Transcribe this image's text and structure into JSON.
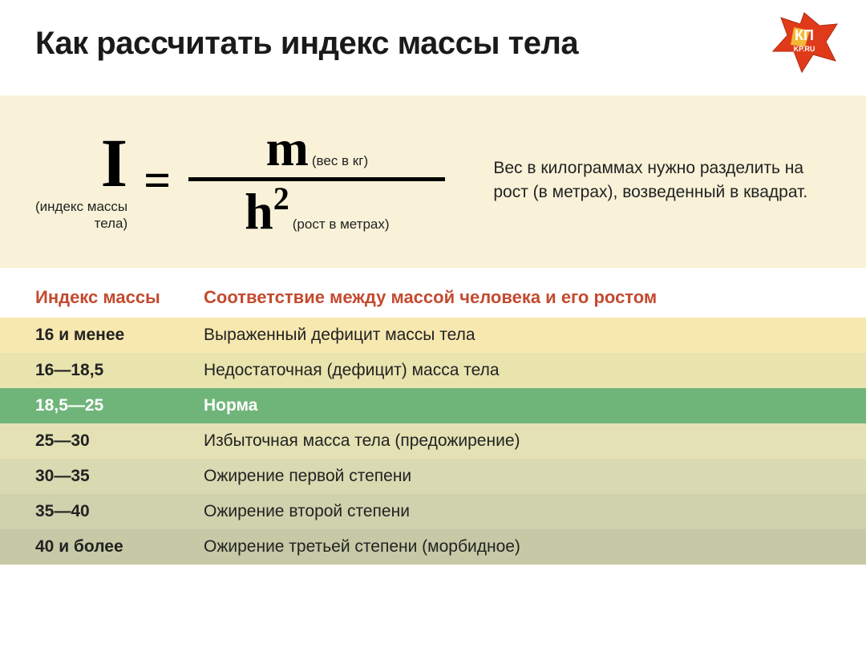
{
  "title": "Как рассчитать индекс массы тела",
  "logo": {
    "text_top": "КП",
    "text_bottom": "KP.RU"
  },
  "formula": {
    "i_symbol": "I",
    "i_label_line1": "(индекс массы",
    "i_label_line2": "тела)",
    "eq": "=",
    "m_symbol": "m",
    "m_label": "(вес в кг)",
    "h_symbol": "h",
    "h_exp": "2",
    "h_label": "(рост в метрах)",
    "explanation": "Вес в килограммах нужно разделить на рост (в метрах), возведенный в квадрат.",
    "background_color": "#f9f2d9"
  },
  "table": {
    "header_index": "Индекс массы",
    "header_desc": "Соответствие между массой человека и его ростом",
    "header_color": "#c44a2f",
    "rows": [
      {
        "index": "16 и менее",
        "desc": "Выраженный дефицит массы тела",
        "bg": "#f7e8b0",
        "norm": false
      },
      {
        "index": "16—18,5",
        "desc": "Недостаточная (дефицит) масса тела",
        "bg": "#e9e4ae",
        "norm": false
      },
      {
        "index": "18,5—25",
        "desc": "Норма",
        "bg": "#6fb57a",
        "norm": true
      },
      {
        "index": "25—30",
        "desc": "Избыточная масса тела (предожирение)",
        "bg": "#e4e2b4",
        "norm": false
      },
      {
        "index": "30—35",
        "desc": "Ожирение первой степени",
        "bg": "#d9d9b2",
        "norm": false
      },
      {
        "index": "35—40",
        "desc": "Ожирение второй степени",
        "bg": "#d0d2ad",
        "norm": false
      },
      {
        "index": "40 и более",
        "desc": "Ожирение третьей степени (морбидное)",
        "bg": "#c6c9a6",
        "norm": false
      }
    ]
  },
  "colors": {
    "title": "#1a1a1a",
    "text": "#222222",
    "logo_fill": "#e03a1a",
    "logo_accent": "#f5c63a"
  }
}
